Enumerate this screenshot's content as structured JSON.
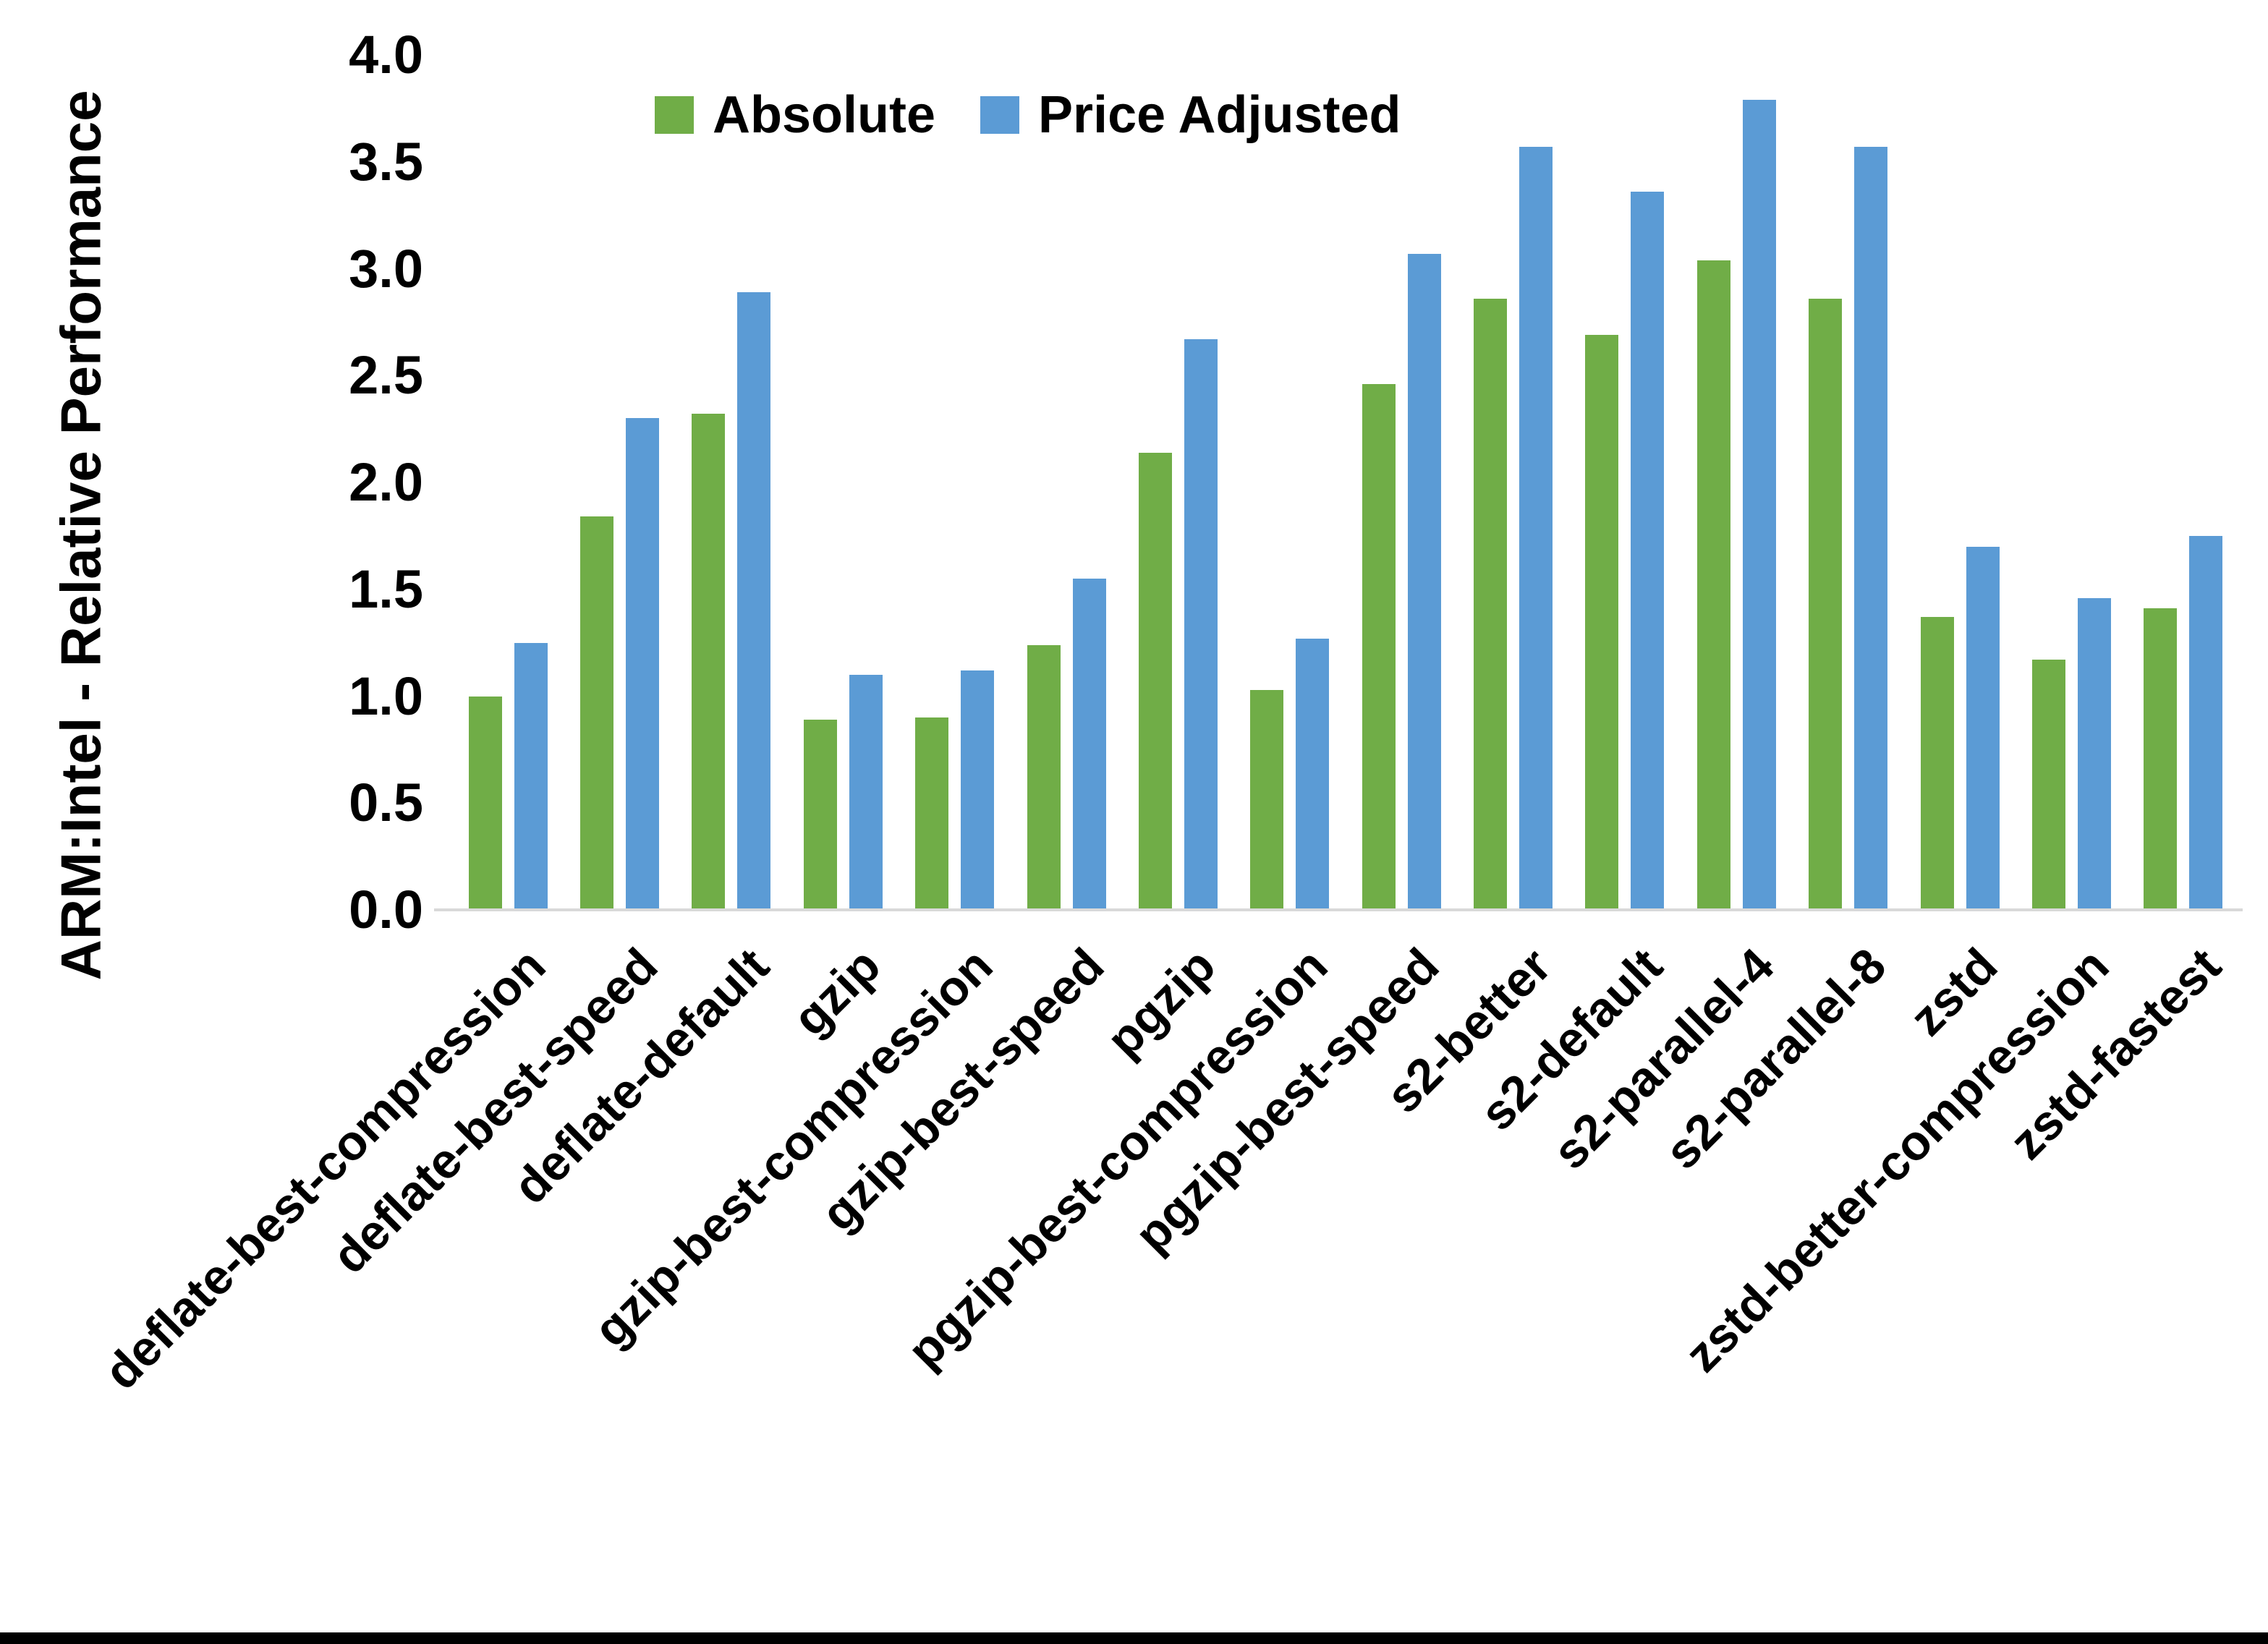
{
  "chart_data": {
    "type": "bar",
    "title": "",
    "ylabel": "ARM:Intel - Relative Performance",
    "xlabel": "",
    "ylim": [
      0,
      4
    ],
    "ytick_step": 0.5,
    "yticks": [
      "0.0",
      "0.5",
      "1.0",
      "1.5",
      "2.0",
      "2.5",
      "3.0",
      "3.5",
      "4.0"
    ],
    "grid": false,
    "legend_position": "top-center-inside",
    "categories": [
      "deflate-best-compression",
      "deflate-best-speed",
      "deflate-default",
      "gzip",
      "gzip-best-compression",
      "gzip-best-speed",
      "pgzip",
      "pgzip-best-compression",
      "pgzip-best-speed",
      "s2-better",
      "s2-default",
      "s2-parallel-4",
      "s2-parallel-8",
      "zstd",
      "zstd-better-compression",
      "zstd-fastest"
    ],
    "series": [
      {
        "name": "Absolute",
        "color": "#70AD47",
        "values": [
          1.0,
          1.84,
          2.32,
          0.89,
          0.9,
          1.24,
          2.14,
          1.03,
          2.46,
          2.86,
          2.69,
          3.04,
          2.86,
          1.37,
          1.17,
          1.41
        ]
      },
      {
        "name": "Price Adjusted",
        "color": "#5B9BD5",
        "values": [
          1.25,
          2.3,
          2.89,
          1.1,
          1.12,
          1.55,
          2.67,
          1.27,
          3.07,
          3.57,
          3.36,
          3.79,
          3.57,
          1.7,
          1.46,
          1.75
        ]
      }
    ]
  },
  "colors": {
    "background": "#FFFFFF",
    "axis_line": "#D9D9D9",
    "text": "#000000",
    "bottom_border": "#000000"
  }
}
